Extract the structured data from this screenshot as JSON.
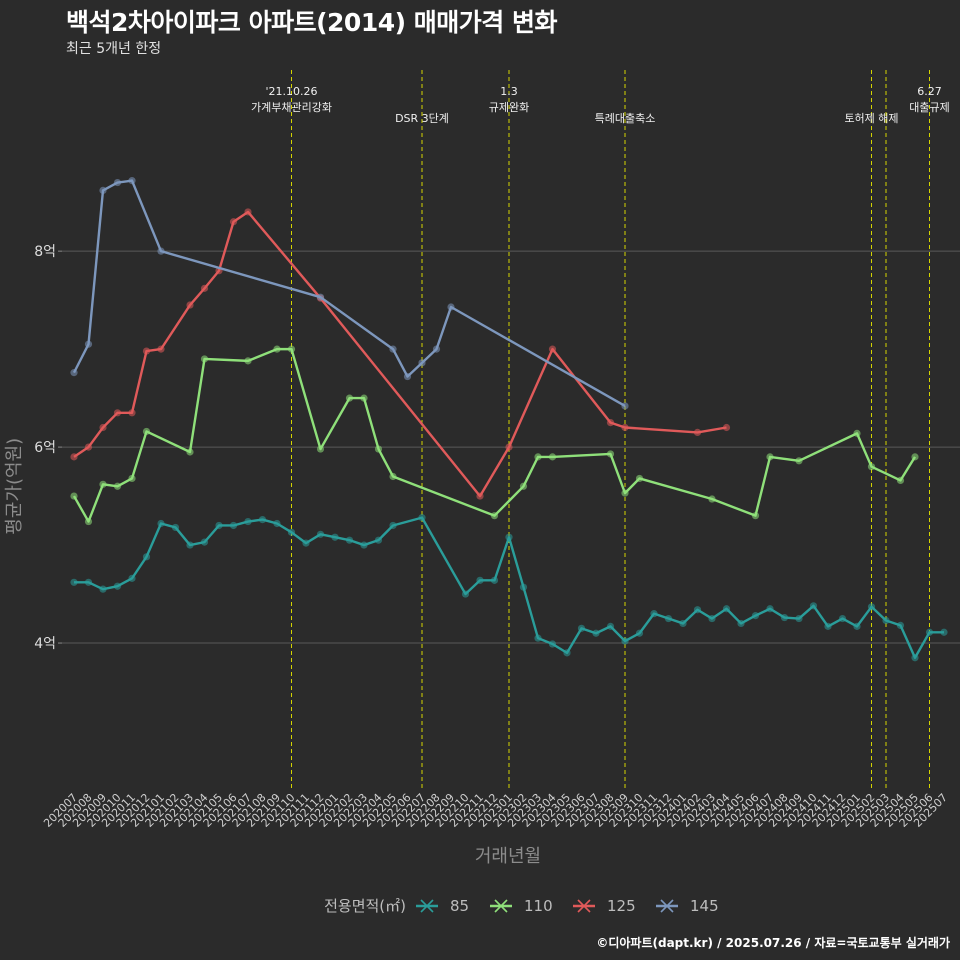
{
  "title": "백석2차아이파크 아파트(2014) 매매가격 변화",
  "subtitle": "최근 5개년 한정",
  "caption": "©디아파트(dapt.kr) / 2025.07.26 / 자료=국토교통부 실거래가",
  "chart_data": {
    "type": "line",
    "xlabel": "거래년월",
    "ylabel": "평균가(억원)",
    "categories": [
      "202007",
      "202008",
      "202009",
      "202010",
      "202011",
      "202012",
      "202101",
      "202102",
      "202103",
      "202104",
      "202105",
      "202106",
      "202107",
      "202108",
      "202109",
      "202110",
      "202111",
      "202112",
      "202201",
      "202202",
      "202203",
      "202204",
      "202205",
      "202206",
      "202207",
      "202208",
      "202209",
      "202210",
      "202211",
      "202212",
      "202301",
      "202302",
      "202303",
      "202304",
      "202305",
      "202306",
      "202307",
      "202308",
      "202309",
      "202310",
      "202311",
      "202312",
      "202401",
      "202402",
      "202403",
      "202404",
      "202405",
      "202406",
      "202407",
      "202408",
      "202409",
      "202410",
      "202411",
      "202412",
      "202501",
      "202502",
      "202503",
      "202504",
      "202505",
      "202506",
      "202507"
    ],
    "ylim": [
      2.5,
      9.9
    ],
    "yticks": [
      {
        "v": 4,
        "label": "4억"
      },
      {
        "v": 6,
        "label": "6억"
      },
      {
        "v": 8,
        "label": "8억"
      }
    ],
    "grid": true,
    "legend_position": "bottom",
    "legend_title": "전용면적(㎡)",
    "series": [
      {
        "name": "85",
        "color": "#2a9d9a",
        "values": [
          4.62,
          4.62,
          4.55,
          4.58,
          4.66,
          4.88,
          5.22,
          5.18,
          5.0,
          5.03,
          5.2,
          5.2,
          5.24,
          5.26,
          5.22,
          5.13,
          5.02,
          5.11,
          5.08,
          5.05,
          5.0,
          5.05,
          5.2,
          null,
          5.28,
          null,
          null,
          4.5,
          4.64,
          4.64,
          5.08,
          4.57,
          4.05,
          3.99,
          3.9,
          4.15,
          4.1,
          4.17,
          4.02,
          4.1,
          4.3,
          4.25,
          4.2,
          4.34,
          4.25,
          4.35,
          4.2,
          4.28,
          4.35,
          4.26,
          4.25,
          4.38,
          4.17,
          4.25,
          4.17,
          4.37,
          4.23,
          4.18,
          3.85,
          4.11,
          4.11
        ]
      },
      {
        "name": "110",
        "color": "#8fe07a",
        "values": [
          5.5,
          5.24,
          5.62,
          5.6,
          5.68,
          6.16,
          null,
          null,
          5.95,
          6.9,
          null,
          null,
          6.88,
          null,
          7.0,
          7.0,
          null,
          5.98,
          null,
          6.5,
          6.5,
          5.98,
          5.7,
          null,
          null,
          null,
          null,
          null,
          null,
          5.3,
          null,
          5.6,
          5.9,
          5.9,
          null,
          null,
          null,
          5.93,
          5.53,
          5.68,
          null,
          null,
          null,
          null,
          5.47,
          null,
          null,
          5.3,
          5.9,
          null,
          5.86,
          null,
          null,
          null,
          6.14,
          5.8,
          null,
          5.66,
          5.9,
          null,
          null
        ]
      },
      {
        "name": "125",
        "color": "#e05a5a",
        "values": [
          5.9,
          6.0,
          6.2,
          6.35,
          6.35,
          6.98,
          7.0,
          null,
          7.45,
          7.62,
          7.8,
          8.3,
          8.4,
          null,
          null,
          null,
          null,
          7.52,
          null,
          null,
          null,
          null,
          null,
          null,
          null,
          null,
          null,
          null,
          5.5,
          null,
          6.0,
          null,
          null,
          7.0,
          null,
          null,
          null,
          6.25,
          6.2,
          null,
          null,
          null,
          null,
          6.15,
          null,
          6.2,
          null,
          null,
          null,
          null,
          null,
          null,
          null,
          null,
          null,
          null,
          null,
          null,
          null,
          null,
          null
        ]
      },
      {
        "name": "145",
        "color": "#7d97bd",
        "values": [
          6.76,
          7.05,
          8.62,
          8.7,
          8.72,
          null,
          8.0,
          null,
          null,
          null,
          null,
          null,
          null,
          null,
          null,
          null,
          null,
          7.53,
          null,
          null,
          null,
          null,
          7.0,
          6.72,
          6.86,
          7.0,
          7.43,
          null,
          null,
          null,
          null,
          null,
          null,
          null,
          null,
          null,
          null,
          null,
          6.42,
          null,
          null,
          null,
          null,
          null,
          null,
          null,
          null,
          null,
          null,
          null,
          null,
          null,
          null,
          null,
          null,
          null,
          null,
          null,
          null,
          null,
          null
        ]
      }
    ],
    "events": [
      {
        "category": "202110",
        "label": "'21.10.26\n가계부채관리강화"
      },
      {
        "category": "202207",
        "label": "DSR 3단계"
      },
      {
        "category": "202301",
        "label": "1.3\n규제완화"
      },
      {
        "category": "202309",
        "label": "특례대출축소"
      },
      {
        "category": "202502",
        "label": "토허제 해제"
      },
      {
        "category": "202503",
        "label": ""
      },
      {
        "category": "202506",
        "label": "6.27\n대출규제"
      }
    ]
  }
}
